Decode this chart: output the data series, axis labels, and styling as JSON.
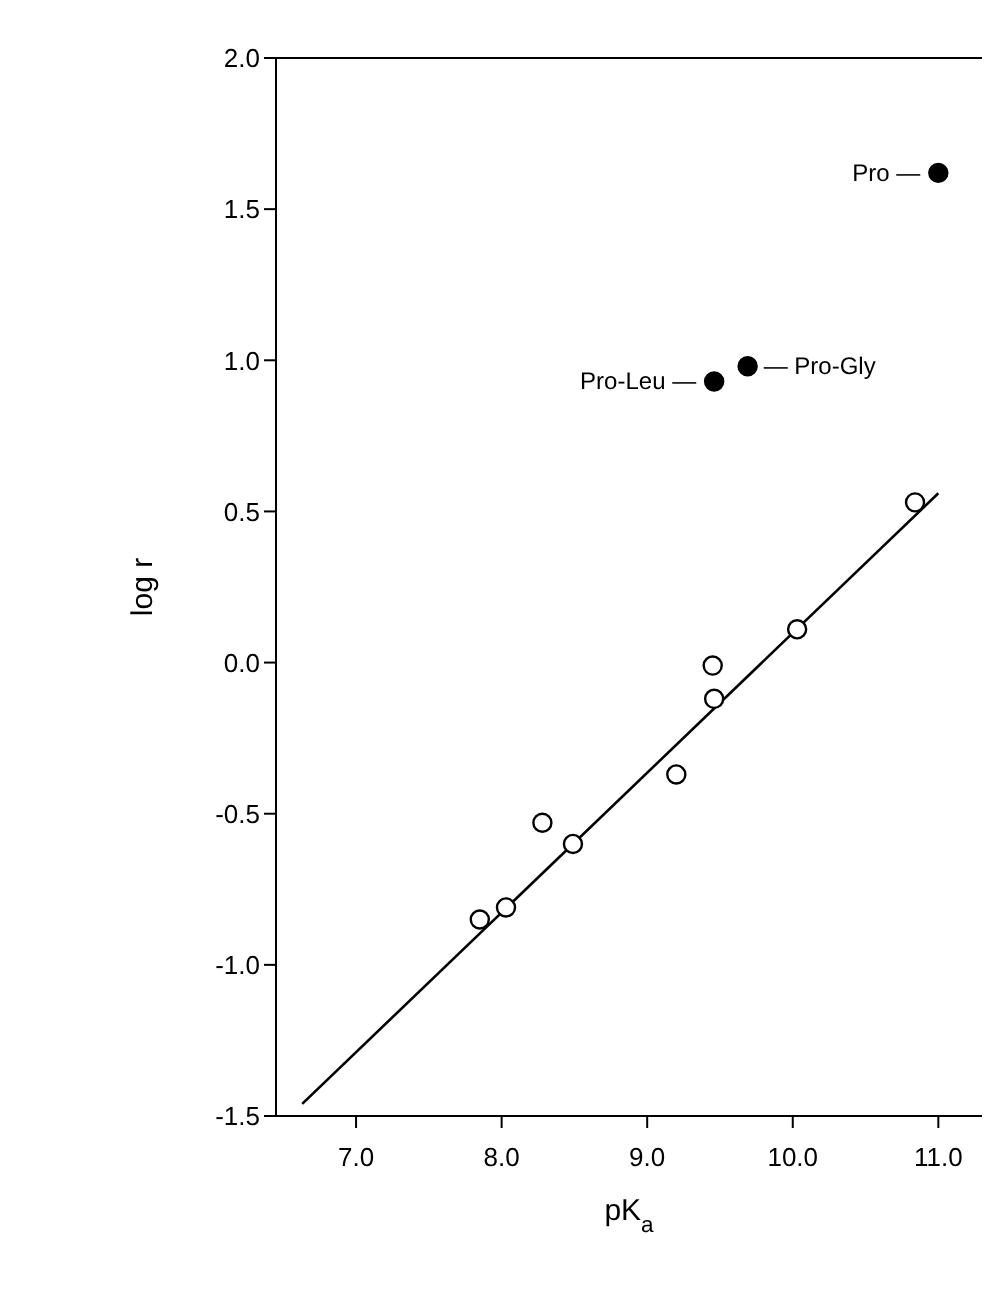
{
  "chart_data": {
    "type": "scatter",
    "xlabel": "pK$_{a}$",
    "ylabel": "log r",
    "xlim": [
      6.45,
      11.3
    ],
    "ylim": [
      -1.5,
      2.0
    ],
    "xticks": [
      {
        "value": 7,
        "label": "7.0"
      },
      {
        "value": 8,
        "label": "8.0"
      },
      {
        "value": 9,
        "label": "9.0"
      },
      {
        "value": 10,
        "label": "10.0"
      },
      {
        "value": 11,
        "label": "11.0"
      }
    ],
    "yticks": [
      {
        "value": -1.5,
        "label": "-1.5"
      },
      {
        "value": -1,
        "label": "-1.0"
      },
      {
        "value": -0.5,
        "label": "-0.5"
      },
      {
        "value": 0,
        "label": "0.0"
      },
      {
        "value": 0.5,
        "label": "0.5"
      },
      {
        "value": 1,
        "label": "1.0"
      },
      {
        "value": 1.5,
        "label": "1.5"
      },
      {
        "value": 2,
        "label": "2.0"
      }
    ],
    "series": [
      {
        "marker": "circle",
        "color": "#ffffff",
        "x": [
          7.85,
          8.03,
          8.28,
          8.49,
          9.2,
          9.45,
          9.46,
          10.03,
          10.84
        ],
        "values": [
          -0.85,
          -0.81,
          -0.53,
          -0.6,
          -0.37,
          -0.01,
          -0.12,
          0.11,
          0.53
        ]
      },
      {
        "marker": "circle",
        "color": "#000000",
        "x": [
          9.46,
          9.69,
          11.0
        ],
        "values": [
          0.93,
          0.98,
          1.62
        ]
      },
      {
        "type": "line",
        "marker": "none",
        "color": "#000000",
        "x": [
          6.63,
          11.0
        ],
        "values": [
          -1.46,
          0.56
        ]
      }
    ],
    "annotations": [
      {
        "text": "Pro —",
        "x": 11.0,
        "y": 1.62
      },
      {
        "text": "— Pro-Gly",
        "x": 9.69,
        "y": 0.98
      },
      {
        "text": "Pro-Leu —",
        "x": 9.46,
        "y": 0.93
      }
    ]
  }
}
